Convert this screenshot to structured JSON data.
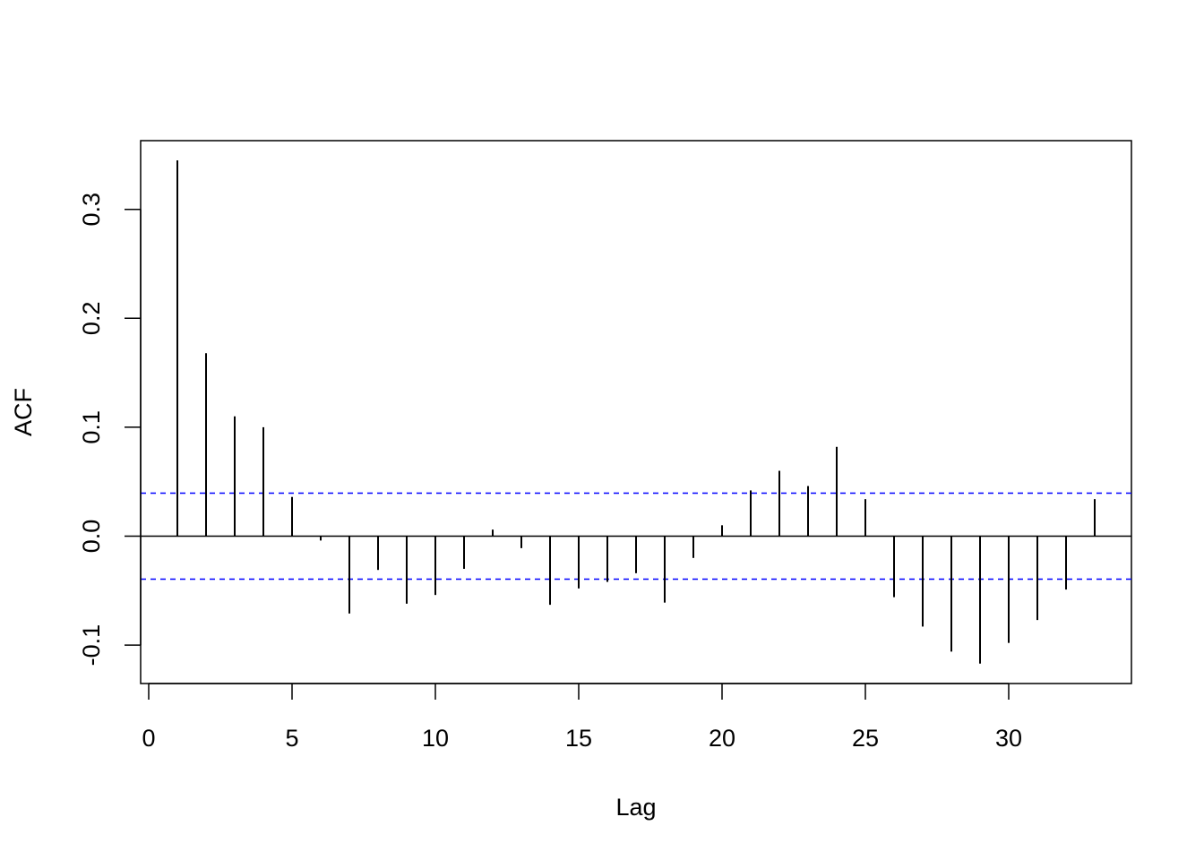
{
  "chart_data": {
    "type": "bar",
    "title": "",
    "xlabel": "Lag",
    "ylabel": "ACF",
    "xlim": [
      0,
      34
    ],
    "ylim": [
      -0.135,
      0.35
    ],
    "x_ticks": [
      0,
      5,
      10,
      15,
      20,
      25,
      30
    ],
    "y_ticks": [
      -0.1,
      0.0,
      0.1,
      0.2,
      0.3
    ],
    "y_tick_labels": [
      "-0.1",
      "0.0",
      "0.1",
      "0.2",
      "0.3"
    ],
    "grid": false,
    "lags": [
      1,
      2,
      3,
      4,
      5,
      6,
      7,
      8,
      9,
      10,
      11,
      12,
      13,
      14,
      15,
      16,
      17,
      18,
      19,
      20,
      21,
      22,
      23,
      24,
      25,
      26,
      27,
      28,
      29,
      30,
      31,
      32,
      33
    ],
    "values": [
      0.345,
      0.168,
      0.11,
      0.1,
      0.036,
      -0.004,
      -0.071,
      -0.031,
      -0.062,
      -0.054,
      -0.03,
      0.006,
      -0.011,
      -0.063,
      -0.048,
      -0.042,
      -0.034,
      -0.061,
      -0.02,
      0.01,
      0.042,
      0.06,
      0.046,
      0.082,
      0.034,
      -0.056,
      -0.083,
      -0.106,
      -0.117,
      -0.098,
      -0.077,
      -0.049,
      0.034
    ],
    "confidence_bound": 0.0395,
    "colors": {
      "bars": "#000000",
      "confidence": "#0000ff",
      "frame": "#000000"
    }
  }
}
